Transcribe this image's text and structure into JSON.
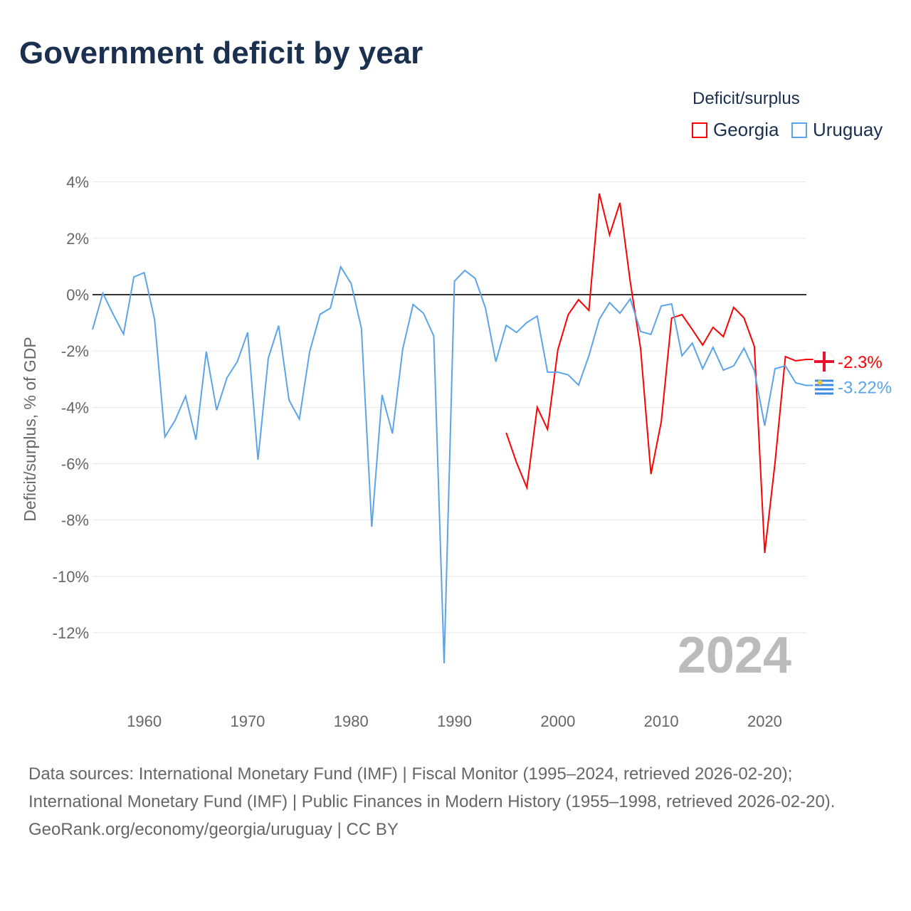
{
  "chart_data": {
    "type": "line",
    "title": "Government deficit by year",
    "ylabel": "Deficit/surplus, % of GDP",
    "xlabel": "",
    "xlim": [
      1955,
      2024
    ],
    "ylim": [
      -13.5,
      4.5
    ],
    "yticks": [
      4,
      2,
      0,
      -2,
      -4,
      -6,
      -8,
      -10,
      -12
    ],
    "ytick_labels": [
      "4%",
      "2%",
      "0%",
      "-2%",
      "-4%",
      "-6%",
      "-8%",
      "-10%",
      "-12%"
    ],
    "xticks": [
      1960,
      1970,
      1980,
      1990,
      2000,
      2010,
      2020
    ],
    "xtick_labels": [
      "1960",
      "1970",
      "1980",
      "1990",
      "2000",
      "2010",
      "2020"
    ],
    "legend_title": "Deficit/surplus",
    "legend_position": "top-right",
    "year_label": "2024",
    "series": [
      {
        "name": "Georgia",
        "color": "#ff0000",
        "end_label": "-2.3%",
        "start": 1995,
        "values": [
          -4.9,
          -5.96,
          -6.85,
          -4.0,
          -4.78,
          -1.95,
          -0.71,
          -0.18,
          -0.56,
          3.59,
          2.12,
          3.26,
          0.45,
          -1.92,
          -6.37,
          -4.5,
          -0.83,
          -0.71,
          -1.24,
          -1.79,
          -1.16,
          -1.49,
          -0.45,
          -0.83,
          -1.84,
          -9.17,
          -5.96,
          -2.2,
          -2.35,
          -2.3
        ]
      },
      {
        "name": "Uruguay",
        "color": "#5ba4ea",
        "end_label": "-3.22%",
        "start": 1955,
        "values": [
          -1.24,
          0.05,
          -0.7,
          -1.4,
          0.63,
          0.78,
          -0.88,
          -5.05,
          -4.45,
          -3.6,
          -5.15,
          -2.02,
          -4.1,
          -2.95,
          -2.38,
          -1.34,
          -5.86,
          -2.25,
          -1.1,
          -3.74,
          -4.42,
          -2.02,
          -0.7,
          -0.48,
          0.99,
          0.4,
          -1.19,
          -8.24,
          -3.56,
          -4.93,
          -1.92,
          -0.35,
          -0.66,
          -1.47,
          -13.09,
          0.48,
          0.86,
          0.58,
          -0.48,
          -2.38,
          -1.09,
          -1.34,
          -0.99,
          -0.76,
          -2.75,
          -2.75,
          -2.85,
          -3.21,
          -2.17,
          -0.88,
          -0.28,
          -0.66,
          -0.15,
          -1.31,
          -1.41,
          -0.4,
          -0.33,
          -2.17,
          -1.72,
          -2.63,
          -1.87,
          -2.68,
          -2.53,
          -1.9,
          -2.7,
          -4.65,
          -2.63,
          -2.53,
          -3.13,
          -3.22
        ]
      }
    ]
  },
  "sources": "Data sources: International Monetary Fund (IMF) | Fiscal Monitor (1995–2024, retrieved 2026-02-20); International Monetary Fund (IMF) | Public Finances in Modern History (1955–1998, retrieved 2026-02-20).",
  "footer": "GeoRank.org/economy/georgia/uruguay | CC BY"
}
